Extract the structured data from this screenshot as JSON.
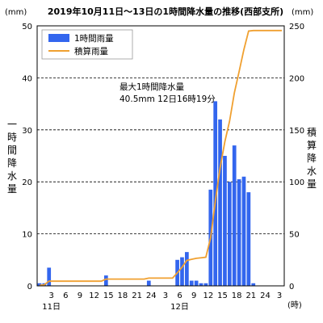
{
  "chart_data": {
    "type": "bar",
    "title": "2019年10月11日～13日の1時間降水量の推移(西部支所)",
    "left_unit": "(mm)",
    "right_unit": "(mm)",
    "x_unit": "(時)",
    "ylabel_left": "一時間降水量",
    "ylabel_right": "積算降水量",
    "ylim_left": [
      0,
      50
    ],
    "ylim_right": [
      0,
      250
    ],
    "y_ticks_left": [
      "0",
      "10",
      "20",
      "30",
      "40",
      "50"
    ],
    "y_ticks_right": [
      "0",
      "50",
      "100",
      "150",
      "200",
      "250"
    ],
    "x_tick_labels": [
      "3",
      "6",
      "9",
      "12",
      "15",
      "18",
      "21",
      "24",
      "3",
      "6",
      "9",
      "12",
      "15",
      "18",
      "21",
      "24",
      "3"
    ],
    "day_labels": [
      {
        "label": "11日",
        "hour": 3
      },
      {
        "label": "12日",
        "hour": 30
      }
    ],
    "grid": "horizontal-dashed",
    "legend_position": "top-left",
    "annotation": {
      "line1": "最大1時間降水量",
      "line2": "40.5mm  12日16時19分"
    },
    "hours": [
      1,
      2,
      3,
      4,
      5,
      6,
      7,
      8,
      9,
      10,
      11,
      12,
      13,
      14,
      15,
      16,
      17,
      18,
      19,
      20,
      21,
      22,
      23,
      24,
      25,
      26,
      27,
      28,
      29,
      30,
      31,
      32,
      33,
      34,
      35,
      36,
      37,
      38,
      39,
      40,
      41,
      42,
      43,
      44,
      45,
      46,
      47,
      48,
      49,
      50,
      51,
      52
    ],
    "series": [
      {
        "name": "1時間雨量",
        "type": "bar",
        "color": "#3366ee",
        "axis": "left",
        "values": [
          0.5,
          0.5,
          3.5,
          0,
          0,
          0,
          0,
          0,
          0,
          0,
          0,
          0,
          0,
          0,
          2,
          0,
          0,
          0,
          0,
          0,
          0,
          0,
          0,
          1,
          0,
          0,
          0,
          0,
          0,
          5,
          5.5,
          6.5,
          1,
          1,
          0.5,
          0.5,
          18.5,
          35.5,
          32,
          25,
          20,
          27,
          20.5,
          21,
          18,
          0.5,
          0,
          0,
          0,
          0,
          0,
          0
        ]
      },
      {
        "name": "積算雨量",
        "type": "line",
        "color": "#f0a030",
        "axis": "right",
        "values": [
          0.5,
          1,
          4.5,
          4.5,
          4.5,
          4.5,
          4.5,
          4.5,
          4.5,
          4.5,
          4.5,
          4.5,
          4.5,
          4.5,
          6.5,
          6.5,
          6.5,
          6.5,
          6.5,
          6.5,
          6.5,
          6.5,
          6.5,
          7.5,
          7.5,
          7.5,
          7.5,
          7.5,
          7.5,
          12.5,
          18,
          24.5,
          25.5,
          26.5,
          27,
          27.5,
          46,
          81.5,
          113.5,
          138.5,
          158.5,
          185.5,
          206,
          227,
          245,
          245.5,
          245.5,
          245.5,
          245.5,
          245.5,
          245.5,
          245.5
        ]
      }
    ]
  }
}
